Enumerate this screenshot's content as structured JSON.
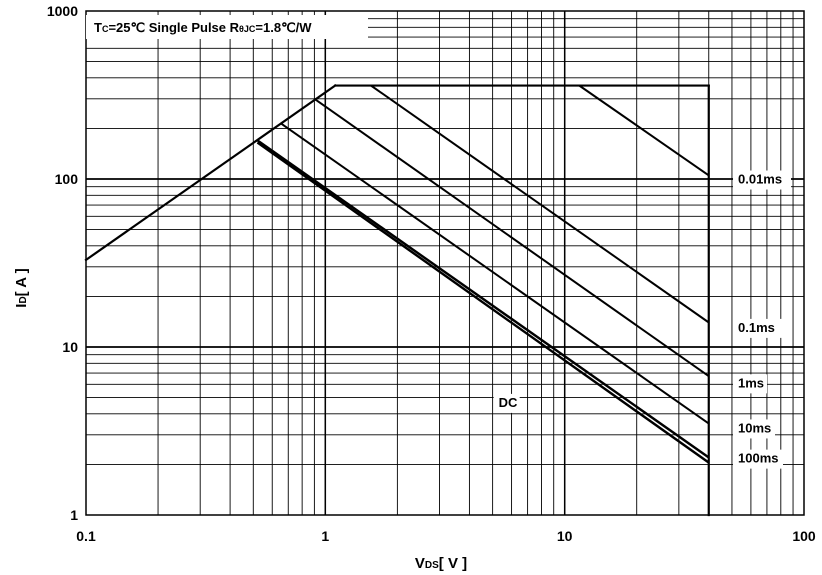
{
  "chart_data": {
    "type": "line",
    "scale": {
      "x": "log",
      "y": "log"
    },
    "xlim": [
      0.1,
      100
    ],
    "ylim": [
      1,
      1000
    ],
    "grid": true,
    "xticks": [
      "0.1",
      "1",
      "10",
      "100"
    ],
    "yticks": [
      "1",
      "10",
      "100",
      "1000"
    ],
    "xlabel": {
      "main": "V",
      "sub": "DS",
      "unit": "[ V ]"
    },
    "ylabel": {
      "main": "I",
      "sub": "D",
      "unit": "[ A ]"
    },
    "annotation": {
      "parts": [
        {
          "text": "T",
          "sub": false
        },
        {
          "text": "C",
          "sub": true
        },
        {
          "text": "=25℃ Single Pulse R",
          "sub": false
        },
        {
          "text": "θJC",
          "sub": true
        },
        {
          "text": "=1.8℃/W",
          "sub": false
        }
      ]
    },
    "boundaries": {
      "rds_on_limit": {
        "x": [
          0.1,
          1.1
        ],
        "y": [
          33,
          360
        ]
      },
      "current_limit": {
        "x": [
          1.1,
          40
        ],
        "y": [
          360,
          360
        ]
      },
      "voltage_limit": {
        "x": [
          40,
          40
        ],
        "y": [
          1,
          360
        ]
      }
    },
    "series": [
      {
        "name": "0.01ms",
        "x": [
          11.5,
          40
        ],
        "y": [
          360,
          105
        ]
      },
      {
        "name": "0.1ms",
        "x": [
          1.55,
          40
        ],
        "y": [
          360,
          14
        ]
      },
      {
        "name": "1ms",
        "x": [
          0.9,
          40
        ],
        "y": [
          300,
          6.7
        ]
      },
      {
        "name": "10ms",
        "x": [
          0.65,
          40
        ],
        "y": [
          215,
          3.5
        ]
      },
      {
        "name": "100ms",
        "x": [
          0.52,
          40
        ],
        "y": [
          170,
          2.2
        ]
      },
      {
        "name": "DC",
        "x": [
          0.52,
          40
        ],
        "y": [
          165,
          2.05
        ]
      }
    ],
    "series_labels": [
      {
        "name": "0.01ms",
        "x": 53,
        "y": 94
      },
      {
        "name": "0.1ms",
        "x": 53,
        "y": 12.3
      },
      {
        "name": "1ms",
        "x": 53,
        "y": 5.75
      },
      {
        "name": "10ms",
        "x": 53,
        "y": 3.1
      },
      {
        "name": "100ms",
        "x": 53,
        "y": 2.05
      },
      {
        "name": "DC",
        "x": 5.3,
        "y": 4.4
      }
    ]
  }
}
